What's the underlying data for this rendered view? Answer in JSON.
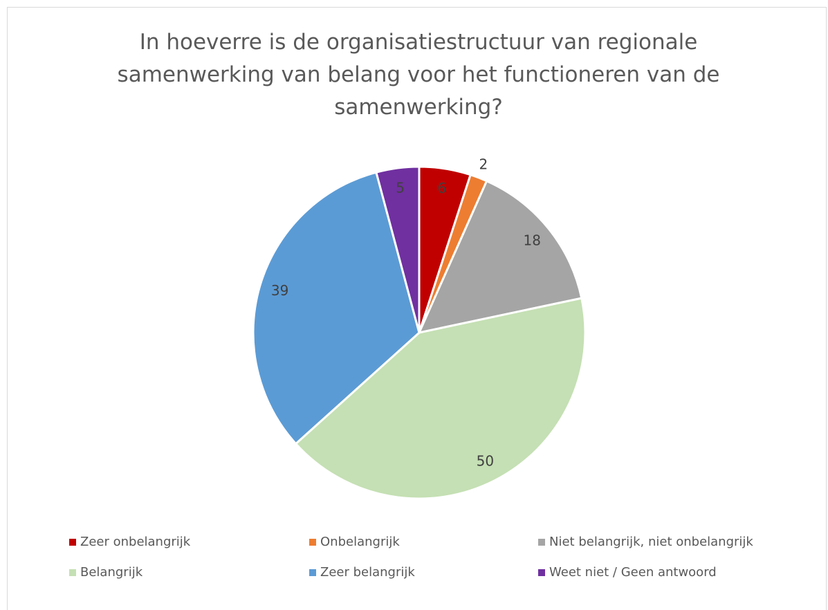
{
  "chart_data": {
    "type": "pie",
    "title": "In hoeverre is de organisatiestructuur van regionale samenwerking van belang voor het functioneren van de samenwerking?",
    "categories": [
      "Zeer onbelangrijk",
      "Onbelangrijk",
      "Niet belangrijk, niet onbelangrijk",
      "Belangrijk",
      "Zeer belangrijk",
      "Weet niet / Geen antwoord"
    ],
    "values": [
      6,
      2,
      18,
      50,
      39,
      5
    ],
    "colors": [
      "#c00000",
      "#ed7d31",
      "#a5a5a5",
      "#c5e0b4",
      "#5b9bd5",
      "#7030a0"
    ],
    "legend": "bottom"
  }
}
